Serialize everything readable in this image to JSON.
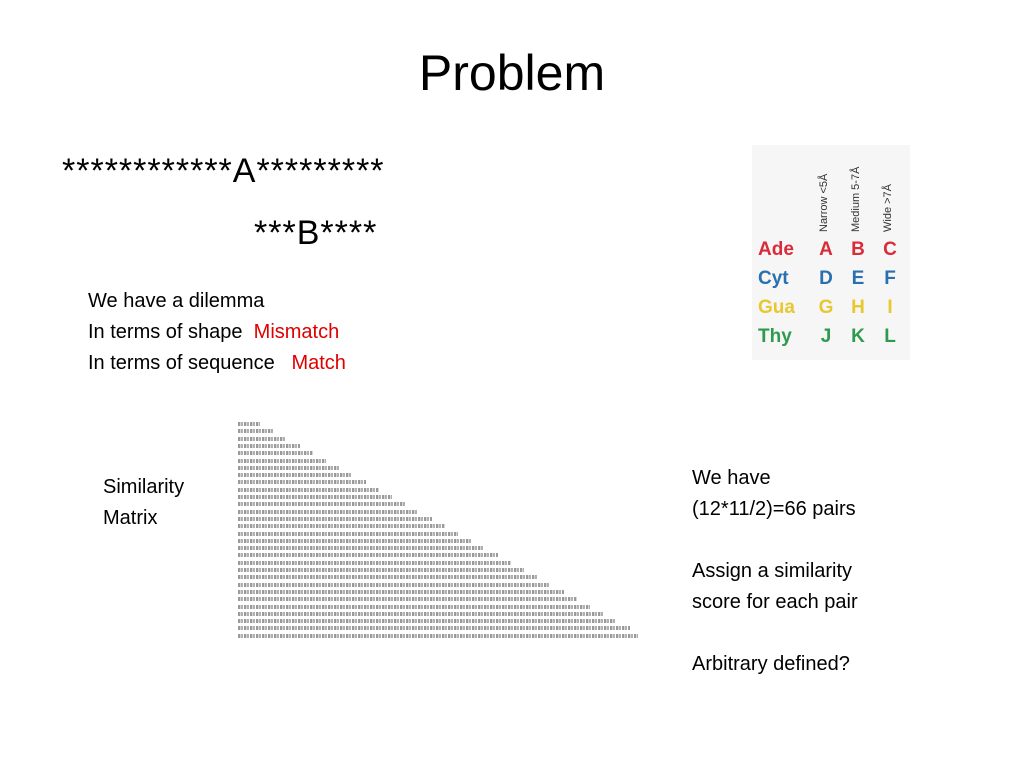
{
  "title": "Problem",
  "sequence_a": "************A*********",
  "sequence_b": "***B****",
  "dilemma": {
    "line1": "We have a dilemma",
    "line2_prefix": "In terms of shape",
    "line2_value": "Mismatch",
    "line3_prefix": "In terms of sequence",
    "line3_value": "Match"
  },
  "similarity_label": [
    "Similarity",
    "Matrix"
  ],
  "right_text": {
    "p1_line1": "We have",
    "p1_line2": "(12*11/2)=66 pairs",
    "p2_line1": "Assign a similarity",
    "p2_line2": "score for each pair",
    "p3": "Arbitrary defined?"
  },
  "groove_table": {
    "columns": [
      "Narrow <5Å",
      "Medium 5-7Å",
      "Wide >7Å"
    ],
    "rows": [
      {
        "base": "Ade",
        "codes": [
          "A",
          "B",
          "C"
        ],
        "color": "#d92b3a"
      },
      {
        "base": "Cyt",
        "codes": [
          "D",
          "E",
          "F"
        ],
        "color": "#2a6fb0"
      },
      {
        "base": "Gua",
        "codes": [
          "G",
          "H",
          "I"
        ],
        "color": "#e8c830"
      },
      {
        "base": "Thy",
        "codes": [
          "J",
          "K",
          "L"
        ],
        "color": "#2e9a4e"
      }
    ]
  },
  "colors": {
    "highlight": "#e00000"
  }
}
